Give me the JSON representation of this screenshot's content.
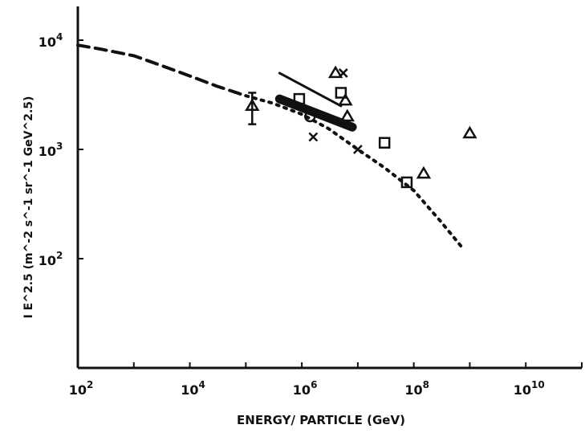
{
  "chart_data": {
    "type": "scatter",
    "title": "",
    "xlabel": "ENERGY/ PARTICLE (GeV)",
    "ylabel": "I E^2.5 (m^-2 s^-1 sr^-1 GeV^2.5)",
    "xscale": "log",
    "yscale": "log",
    "xlim": [
      100,
      100000000000.0
    ],
    "ylim": [
      10,
      10000
    ],
    "grid": false,
    "x_tick_labels": [
      {
        "value": 100,
        "base": "10",
        "exp": "2"
      },
      {
        "value": 10000,
        "base": "10",
        "exp": "4"
      },
      {
        "value": 1000000,
        "base": "10",
        "exp": "6"
      },
      {
        "value": 100000000,
        "base": "10",
        "exp": "8"
      },
      {
        "value": 10000000000,
        "base": "10",
        "exp": "10"
      }
    ],
    "y_tick_labels": [
      {
        "value": 100,
        "base": "10",
        "exp": "2"
      },
      {
        "value": 1000,
        "base": "10",
        "exp": "3"
      },
      {
        "value": 10000,
        "base": "10",
        "exp": "4"
      }
    ],
    "series": [
      {
        "style": "dashed-curve",
        "x": [
          100,
          250,
          1000,
          3000,
          10000,
          30000,
          100000
        ],
        "y": [
          9000,
          8300,
          7200,
          5900,
          4700,
          3800,
          3100
        ]
      },
      {
        "style": "dotted-curve",
        "x": [
          100000,
          300000,
          1000000,
          3000000,
          10000000,
          30000000,
          100000000,
          300000000,
          700000000
        ],
        "y": [
          3100,
          2650,
          2100,
          1550,
          1000,
          680,
          420,
          220,
          130
        ]
      },
      {
        "style": "solid-line",
        "x": [
          400000,
          5000000
        ],
        "y": [
          5000,
          2500
        ]
      },
      {
        "style": "thick-band",
        "x": [
          400000,
          8000000
        ],
        "y": [
          2900,
          1600
        ]
      },
      {
        "style": "triangle-with-error-bar",
        "x": [
          130000
        ],
        "y": [
          2500
        ],
        "y_err_low": [
          1700
        ],
        "y_err_high": [
          3300
        ]
      },
      {
        "style": "triangle",
        "x": [
          4000000,
          6000000,
          6500000,
          1000000000,
          150000000
        ],
        "y": [
          5000,
          2800,
          2000,
          1400,
          600
        ]
      },
      {
        "style": "cross",
        "x": [
          5500000,
          1600000,
          10000000
        ],
        "y": [
          5000,
          1300,
          1000
        ]
      },
      {
        "style": "square",
        "x": [
          900000,
          5000000,
          30000000,
          75000000
        ],
        "y": [
          2900,
          3300,
          1150,
          500
        ]
      },
      {
        "style": "circle",
        "x": [
          1400000
        ],
        "y": [
          2000
        ]
      }
    ]
  }
}
